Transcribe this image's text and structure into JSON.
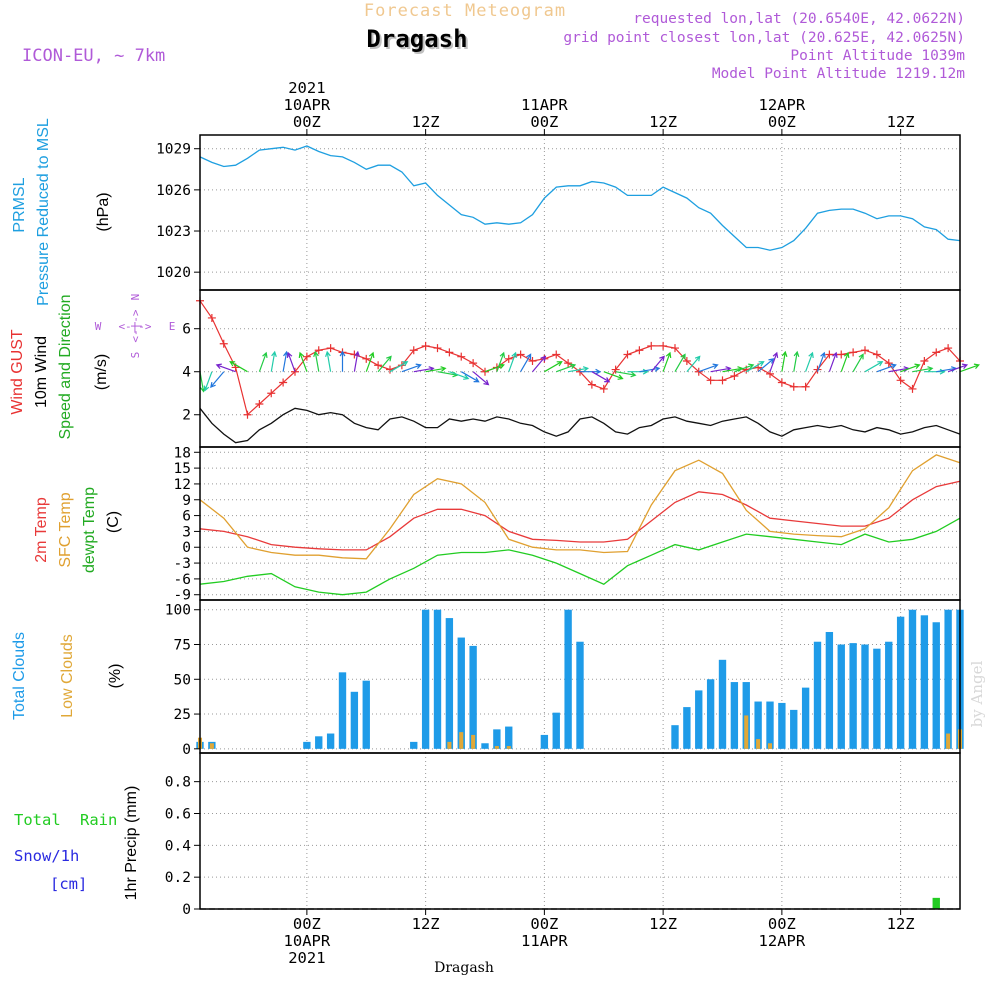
{
  "header": {
    "super_title": "Forecast Meteogram",
    "location": "Dragash",
    "model": "ICON-EU, ~ 7km",
    "info_lines": [
      "requested lon,lat (20.6540E, 42.0622N)",
      "grid point closest lon,lat (20.625E, 42.0625N)",
      "Point Altitude 1039m",
      "Model Point Altitude 1219.12m"
    ]
  },
  "footer": {
    "location": "Dragash",
    "watermark": "by Angel"
  },
  "time_axis": {
    "range_hours": [
      -9,
      55
    ],
    "ticks": [
      {
        "h": 0,
        "top": [
          "2021",
          "10APR",
          "00Z"
        ],
        "bottom": [
          "00Z",
          "10APR",
          "2021"
        ]
      },
      {
        "h": 10,
        "top": [
          "12Z"
        ],
        "bottom": [
          "12Z"
        ]
      },
      {
        "h": 20,
        "top": [
          "11APR",
          "00Z"
        ],
        "bottom": [
          "00Z",
          "11APR"
        ]
      },
      {
        "h": 30,
        "top": [
          "12Z"
        ],
        "bottom": [
          "12Z"
        ]
      },
      {
        "h": 40,
        "top": [
          "12APR",
          "00Z"
        ],
        "bottom": [
          "00Z",
          "12APR"
        ]
      },
      {
        "h": 50,
        "top": [
          "12Z"
        ],
        "bottom": [
          "12Z"
        ]
      }
    ]
  },
  "colors": {
    "pressure": "#1e9fe0",
    "gust": "#e83232",
    "wind": "#111111",
    "t2m": "#e83a3a",
    "tsfc": "#e0a030",
    "dewpt": "#22cc22",
    "total_clouds": "#1e9be8",
    "low_clouds": "#e0a838",
    "rain": "#22cc22",
    "snow": "#2a2ae0",
    "label_purple": "#b05ad8"
  },
  "panel_labels": {
    "pressure": [
      "PRMSL",
      "Pressure Reduced to MSL",
      "(hPa)"
    ],
    "wind": [
      "Wind GUST",
      "10m Wind",
      "Speed and Direction",
      "(m/s)"
    ],
    "compass": [
      "N",
      "S",
      "W",
      "E"
    ],
    "temp": [
      "2m Temp",
      "SFC Temp",
      "dewpt Temp",
      "(C)"
    ],
    "clouds": [
      "Total Clouds",
      "Low Clouds",
      "(%)"
    ],
    "precip": [
      "1hr Precip (mm)",
      "Total",
      "Rain",
      "Snow/1h",
      "[cm]"
    ]
  },
  "chart_data": [
    {
      "type": "line",
      "title": "PRMSL Pressure Reduced to MSL",
      "ylabel": "(hPa)",
      "ylim": [
        1018.7,
        1030
      ],
      "yticks": [
        1020,
        1023,
        1026,
        1029
      ],
      "series": [
        {
          "name": "Pressure",
          "x": [
            -9,
            -8,
            -7,
            -6,
            -5,
            -4,
            -3,
            -2,
            -1,
            0,
            1,
            2,
            3,
            4,
            5,
            6,
            7,
            8,
            9,
            10,
            11,
            12,
            13,
            14,
            15,
            16,
            17,
            18,
            19,
            20,
            21,
            22,
            23,
            24,
            25,
            26,
            27,
            28,
            29,
            30,
            31,
            32,
            33,
            34,
            35,
            36,
            37,
            38,
            39,
            40,
            41,
            42,
            43,
            44,
            45,
            46,
            47,
            48,
            49,
            50,
            51,
            52,
            53,
            54,
            55
          ],
          "values": [
            1028.4,
            1028.0,
            1027.7,
            1027.8,
            1028.3,
            1028.9,
            1029.0,
            1029.1,
            1028.9,
            1029.2,
            1028.8,
            1028.5,
            1028.4,
            1028.0,
            1027.5,
            1027.8,
            1027.8,
            1027.3,
            1026.3,
            1026.5,
            1025.6,
            1024.9,
            1024.2,
            1024.0,
            1023.5,
            1023.6,
            1023.5,
            1023.6,
            1024.2,
            1025.4,
            1026.2,
            1026.3,
            1026.3,
            1026.6,
            1026.5,
            1026.2,
            1025.6,
            1025.6,
            1025.6,
            1026.2,
            1025.8,
            1025.4,
            1024.7,
            1024.3,
            1023.4,
            1022.6,
            1021.8,
            1021.8,
            1021.6,
            1021.8,
            1022.3,
            1023.2,
            1024.3,
            1024.5,
            1024.6,
            1024.6,
            1024.3,
            1023.9,
            1024.1,
            1024.1,
            1023.9,
            1023.3,
            1023.1,
            1022.4,
            1022.3
          ]
        }
      ]
    },
    {
      "type": "line",
      "title": "Wind GUST / 10m Wind Speed and Direction",
      "ylabel": "(m/s)",
      "ylim": [
        0.5,
        7.8
      ],
      "yticks": [
        2,
        4,
        6
      ],
      "series": [
        {
          "name": "Wind GUST",
          "x": [
            -9,
            -8,
            -7,
            -6,
            -5,
            -4,
            -3,
            -2,
            -1,
            0,
            1,
            2,
            3,
            4,
            5,
            6,
            7,
            8,
            9,
            10,
            11,
            12,
            13,
            14,
            15,
            16,
            17,
            18,
            19,
            20,
            21,
            22,
            23,
            24,
            25,
            26,
            27,
            28,
            29,
            30,
            31,
            32,
            33,
            34,
            35,
            36,
            37,
            38,
            39,
            40,
            41,
            42,
            43,
            44,
            45,
            46,
            47,
            48,
            49,
            50,
            51,
            52,
            53,
            54,
            55
          ],
          "values": [
            7.3,
            6.5,
            5.3,
            4.2,
            2.0,
            2.5,
            3.0,
            3.5,
            4.0,
            4.7,
            5.0,
            5.1,
            4.9,
            4.8,
            4.6,
            4.3,
            4.1,
            4.3,
            5.0,
            5.2,
            5.1,
            4.9,
            4.7,
            4.4,
            4.0,
            4.2,
            4.6,
            4.8,
            4.5,
            4.6,
            4.8,
            4.4,
            4.0,
            3.4,
            3.2,
            4.1,
            4.8,
            5.0,
            5.2,
            5.2,
            5.1,
            4.5,
            4.0,
            3.6,
            3.6,
            3.8,
            4.1,
            4.2,
            3.9,
            3.5,
            3.3,
            3.3,
            4.1,
            4.8,
            4.8,
            4.9,
            5.0,
            4.8,
            4.4,
            3.6,
            3.2,
            4.5,
            4.9,
            5.1,
            4.5
          ]
        },
        {
          "name": "10m Wind",
          "x": [
            -9,
            -8,
            -7,
            -6,
            -5,
            -4,
            -3,
            -2,
            -1,
            0,
            1,
            2,
            3,
            4,
            5,
            6,
            7,
            8,
            9,
            10,
            11,
            12,
            13,
            14,
            15,
            16,
            17,
            18,
            19,
            20,
            21,
            22,
            23,
            24,
            25,
            26,
            27,
            28,
            29,
            30,
            31,
            32,
            33,
            34,
            35,
            36,
            37,
            38,
            39,
            40,
            41,
            42,
            43,
            44,
            45,
            46,
            47,
            48,
            49,
            50,
            51,
            52,
            53,
            54,
            55
          ],
          "values": [
            2.3,
            1.6,
            1.1,
            0.7,
            0.8,
            1.3,
            1.6,
            2.0,
            2.3,
            2.2,
            2.0,
            2.1,
            2.0,
            1.6,
            1.4,
            1.3,
            1.8,
            1.9,
            1.7,
            1.4,
            1.4,
            1.8,
            1.7,
            1.8,
            1.7,
            1.9,
            1.8,
            1.6,
            1.5,
            1.2,
            1.0,
            1.2,
            1.8,
            1.9,
            1.6,
            1.2,
            1.1,
            1.4,
            1.5,
            1.8,
            1.9,
            1.7,
            1.6,
            1.5,
            1.7,
            1.8,
            1.9,
            1.6,
            1.2,
            1.0,
            1.3,
            1.4,
            1.5,
            1.4,
            1.5,
            1.3,
            1.2,
            1.4,
            1.3,
            1.1,
            1.2,
            1.4,
            1.5,
            1.3,
            1.1
          ]
        },
        {
          "name": "Wind direction (deg from)",
          "x": [
            -9,
            -8,
            -7,
            -6,
            -5,
            -4,
            -3,
            -2,
            -1,
            0,
            1,
            2,
            3,
            4,
            5,
            6,
            7,
            8,
            9,
            10,
            11,
            12,
            13,
            14,
            15,
            16,
            17,
            18,
            19,
            20,
            21,
            22,
            23,
            24,
            25,
            26,
            27,
            28,
            29,
            30,
            31,
            32,
            33,
            34,
            35,
            36,
            37,
            38,
            39,
            40,
            41,
            42,
            43,
            44,
            45,
            46,
            47,
            48,
            49,
            50,
            51,
            52,
            53,
            54,
            55
          ],
          "values": [
            350,
            20,
            40,
            110,
            120,
            200,
            190,
            190,
            160,
            160,
            170,
            170,
            180,
            190,
            200,
            220,
            240,
            250,
            260,
            260,
            280,
            290,
            300,
            310,
            250,
            200,
            200,
            210,
            220,
            240,
            250,
            260,
            270,
            300,
            290,
            280,
            270,
            260,
            220,
            200,
            210,
            220,
            250,
            260,
            260,
            250,
            240,
            230,
            200,
            190,
            190,
            200,
            200,
            200,
            200,
            210,
            240,
            250,
            260,
            250,
            260,
            270,
            260,
            250,
            250
          ]
        }
      ]
    },
    {
      "type": "line",
      "title": "2m Temp / SFC Temp / dewpt Temp",
      "ylabel": "(C)",
      "ylim": [
        -10,
        19
      ],
      "yticks": [
        -9,
        -6,
        -3,
        0,
        3,
        6,
        9,
        12,
        15,
        18
      ],
      "series": [
        {
          "name": "2m Temp",
          "x": [
            -9,
            -7,
            -5,
            -3,
            -1,
            1,
            3,
            5,
            7,
            9,
            11,
            13,
            15,
            17,
            19,
            21,
            23,
            25,
            27,
            29,
            31,
            33,
            35,
            37,
            39,
            41,
            43,
            45,
            47,
            49,
            51,
            53,
            55
          ],
          "values": [
            3.5,
            3.0,
            2.0,
            0.5,
            0.0,
            -0.3,
            -0.5,
            -0.5,
            2.0,
            5.5,
            7.2,
            7.2,
            6.0,
            3.0,
            1.5,
            1.3,
            1.0,
            1.0,
            1.5,
            5.0,
            8.5,
            10.5,
            10.0,
            8.0,
            5.5,
            5.0,
            4.5,
            4.0,
            4.0,
            5.5,
            9.0,
            11.5,
            12.5
          ]
        },
        {
          "name": "SFC Temp",
          "x": [
            -9,
            -7,
            -5,
            -3,
            -1,
            1,
            3,
            5,
            7,
            9,
            11,
            13,
            15,
            17,
            19,
            21,
            23,
            25,
            27,
            29,
            31,
            33,
            35,
            37,
            39,
            41,
            43,
            45,
            47,
            49,
            51,
            53,
            55
          ],
          "values": [
            9.0,
            5.5,
            0.0,
            -1.0,
            -1.5,
            -1.5,
            -2.0,
            -2.2,
            3.5,
            10.0,
            13.0,
            12.0,
            8.5,
            1.5,
            0.0,
            -0.5,
            -0.5,
            -1.0,
            -0.8,
            8.0,
            14.5,
            16.5,
            14.0,
            7.0,
            3.0,
            2.5,
            2.2,
            2.0,
            3.5,
            7.5,
            14.5,
            17.5,
            16.0
          ]
        },
        {
          "name": "dewpt Temp",
          "x": [
            -9,
            -7,
            -5,
            -3,
            -1,
            1,
            3,
            5,
            7,
            9,
            11,
            13,
            15,
            17,
            19,
            21,
            23,
            25,
            27,
            29,
            31,
            33,
            35,
            37,
            39,
            41,
            43,
            45,
            47,
            49,
            51,
            53,
            55
          ],
          "values": [
            -7.0,
            -6.5,
            -5.5,
            -5.0,
            -7.5,
            -8.5,
            -9.0,
            -8.5,
            -6.0,
            -4.0,
            -1.5,
            -1.0,
            -1.0,
            -0.5,
            -1.5,
            -3.0,
            -5.0,
            -7.0,
            -3.5,
            -1.5,
            0.5,
            -0.5,
            1.0,
            2.5,
            2.0,
            1.5,
            1.0,
            0.5,
            2.5,
            1.0,
            1.5,
            3.0,
            5.5
          ]
        }
      ]
    },
    {
      "type": "bar",
      "title": "Total Clouds / Low Clouds",
      "ylabel": "(%)",
      "ylim": [
        -3,
        107
      ],
      "yticks": [
        0,
        25,
        50,
        75,
        100
      ],
      "x": [
        -9,
        -8,
        -7,
        -6,
        -5,
        -4,
        -3,
        -2,
        -1,
        0,
        1,
        2,
        3,
        4,
        5,
        6,
        7,
        8,
        9,
        10,
        11,
        12,
        13,
        14,
        15,
        16,
        17,
        18,
        19,
        20,
        21,
        22,
        23,
        24,
        25,
        26,
        27,
        28,
        29,
        30,
        31,
        32,
        33,
        34,
        35,
        36,
        37,
        38,
        39,
        40,
        41,
        42,
        43,
        44,
        45,
        46,
        47,
        48,
        49,
        50,
        51,
        52,
        53,
        54,
        55
      ],
      "series": [
        {
          "name": "Total Clouds",
          "values": [
            5,
            5,
            0,
            0,
            0,
            0,
            0,
            0,
            0,
            5,
            9,
            11,
            55,
            41,
            49,
            0,
            0,
            0,
            5,
            100,
            100,
            94,
            80,
            74,
            4,
            14,
            16,
            0,
            0,
            10,
            26,
            100,
            77,
            0,
            0,
            0,
            0,
            0,
            0,
            0,
            17,
            30,
            42,
            50,
            64,
            48,
            48,
            34,
            34,
            33,
            28,
            44,
            77,
            84,
            75,
            76,
            75,
            72,
            77,
            95,
            100,
            96,
            91,
            100,
            100
          ]
        },
        {
          "name": "Low Clouds",
          "values": [
            8,
            4,
            0,
            0,
            0,
            0,
            0,
            0,
            0,
            0,
            0,
            0,
            0,
            0,
            0,
            0,
            0,
            0,
            0,
            0,
            0,
            5,
            12,
            10,
            0,
            2,
            2,
            0,
            0,
            0,
            0,
            0,
            0,
            0,
            0,
            0,
            0,
            0,
            0,
            0,
            0,
            0,
            0,
            0,
            0,
            0,
            24,
            7,
            4,
            0,
            0,
            0,
            0,
            0,
            0,
            0,
            0,
            0,
            0,
            0,
            0,
            0,
            0,
            11,
            14
          ]
        }
      ]
    },
    {
      "type": "bar",
      "title": "1hr Precip",
      "ylabel": "1hr Precip (mm)",
      "ylim": [
        0,
        0.98
      ],
      "yticks": [
        0,
        0.2,
        0.4,
        0.6,
        0.8
      ],
      "ytick_labels": [
        "0",
        "0.2",
        "0.4",
        "0.6",
        "0.8"
      ],
      "series": [
        {
          "name": "Total Rain",
          "x": [
            53
          ],
          "values": [
            0.07
          ]
        },
        {
          "name": "Snow/1h",
          "x": [],
          "values": []
        }
      ]
    }
  ]
}
